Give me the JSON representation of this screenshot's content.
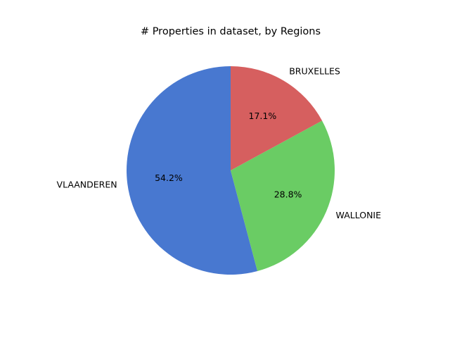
{
  "chart_data": {
    "type": "pie",
    "title": "# Properties in dataset, by Regions",
    "start_angle_deg": 90,
    "direction": "counterclockwise",
    "slices": [
      {
        "label": "VLAANDEREN",
        "value": 54.2,
        "pct_label": "54.2%",
        "color": "#4878d0"
      },
      {
        "label": "WALLONIE",
        "value": 28.8,
        "pct_label": "28.8%",
        "color": "#6acc64"
      },
      {
        "label": "BRUXELLES",
        "value": 17.1,
        "pct_label": "17.1%",
        "color": "#d65f5f"
      }
    ]
  }
}
